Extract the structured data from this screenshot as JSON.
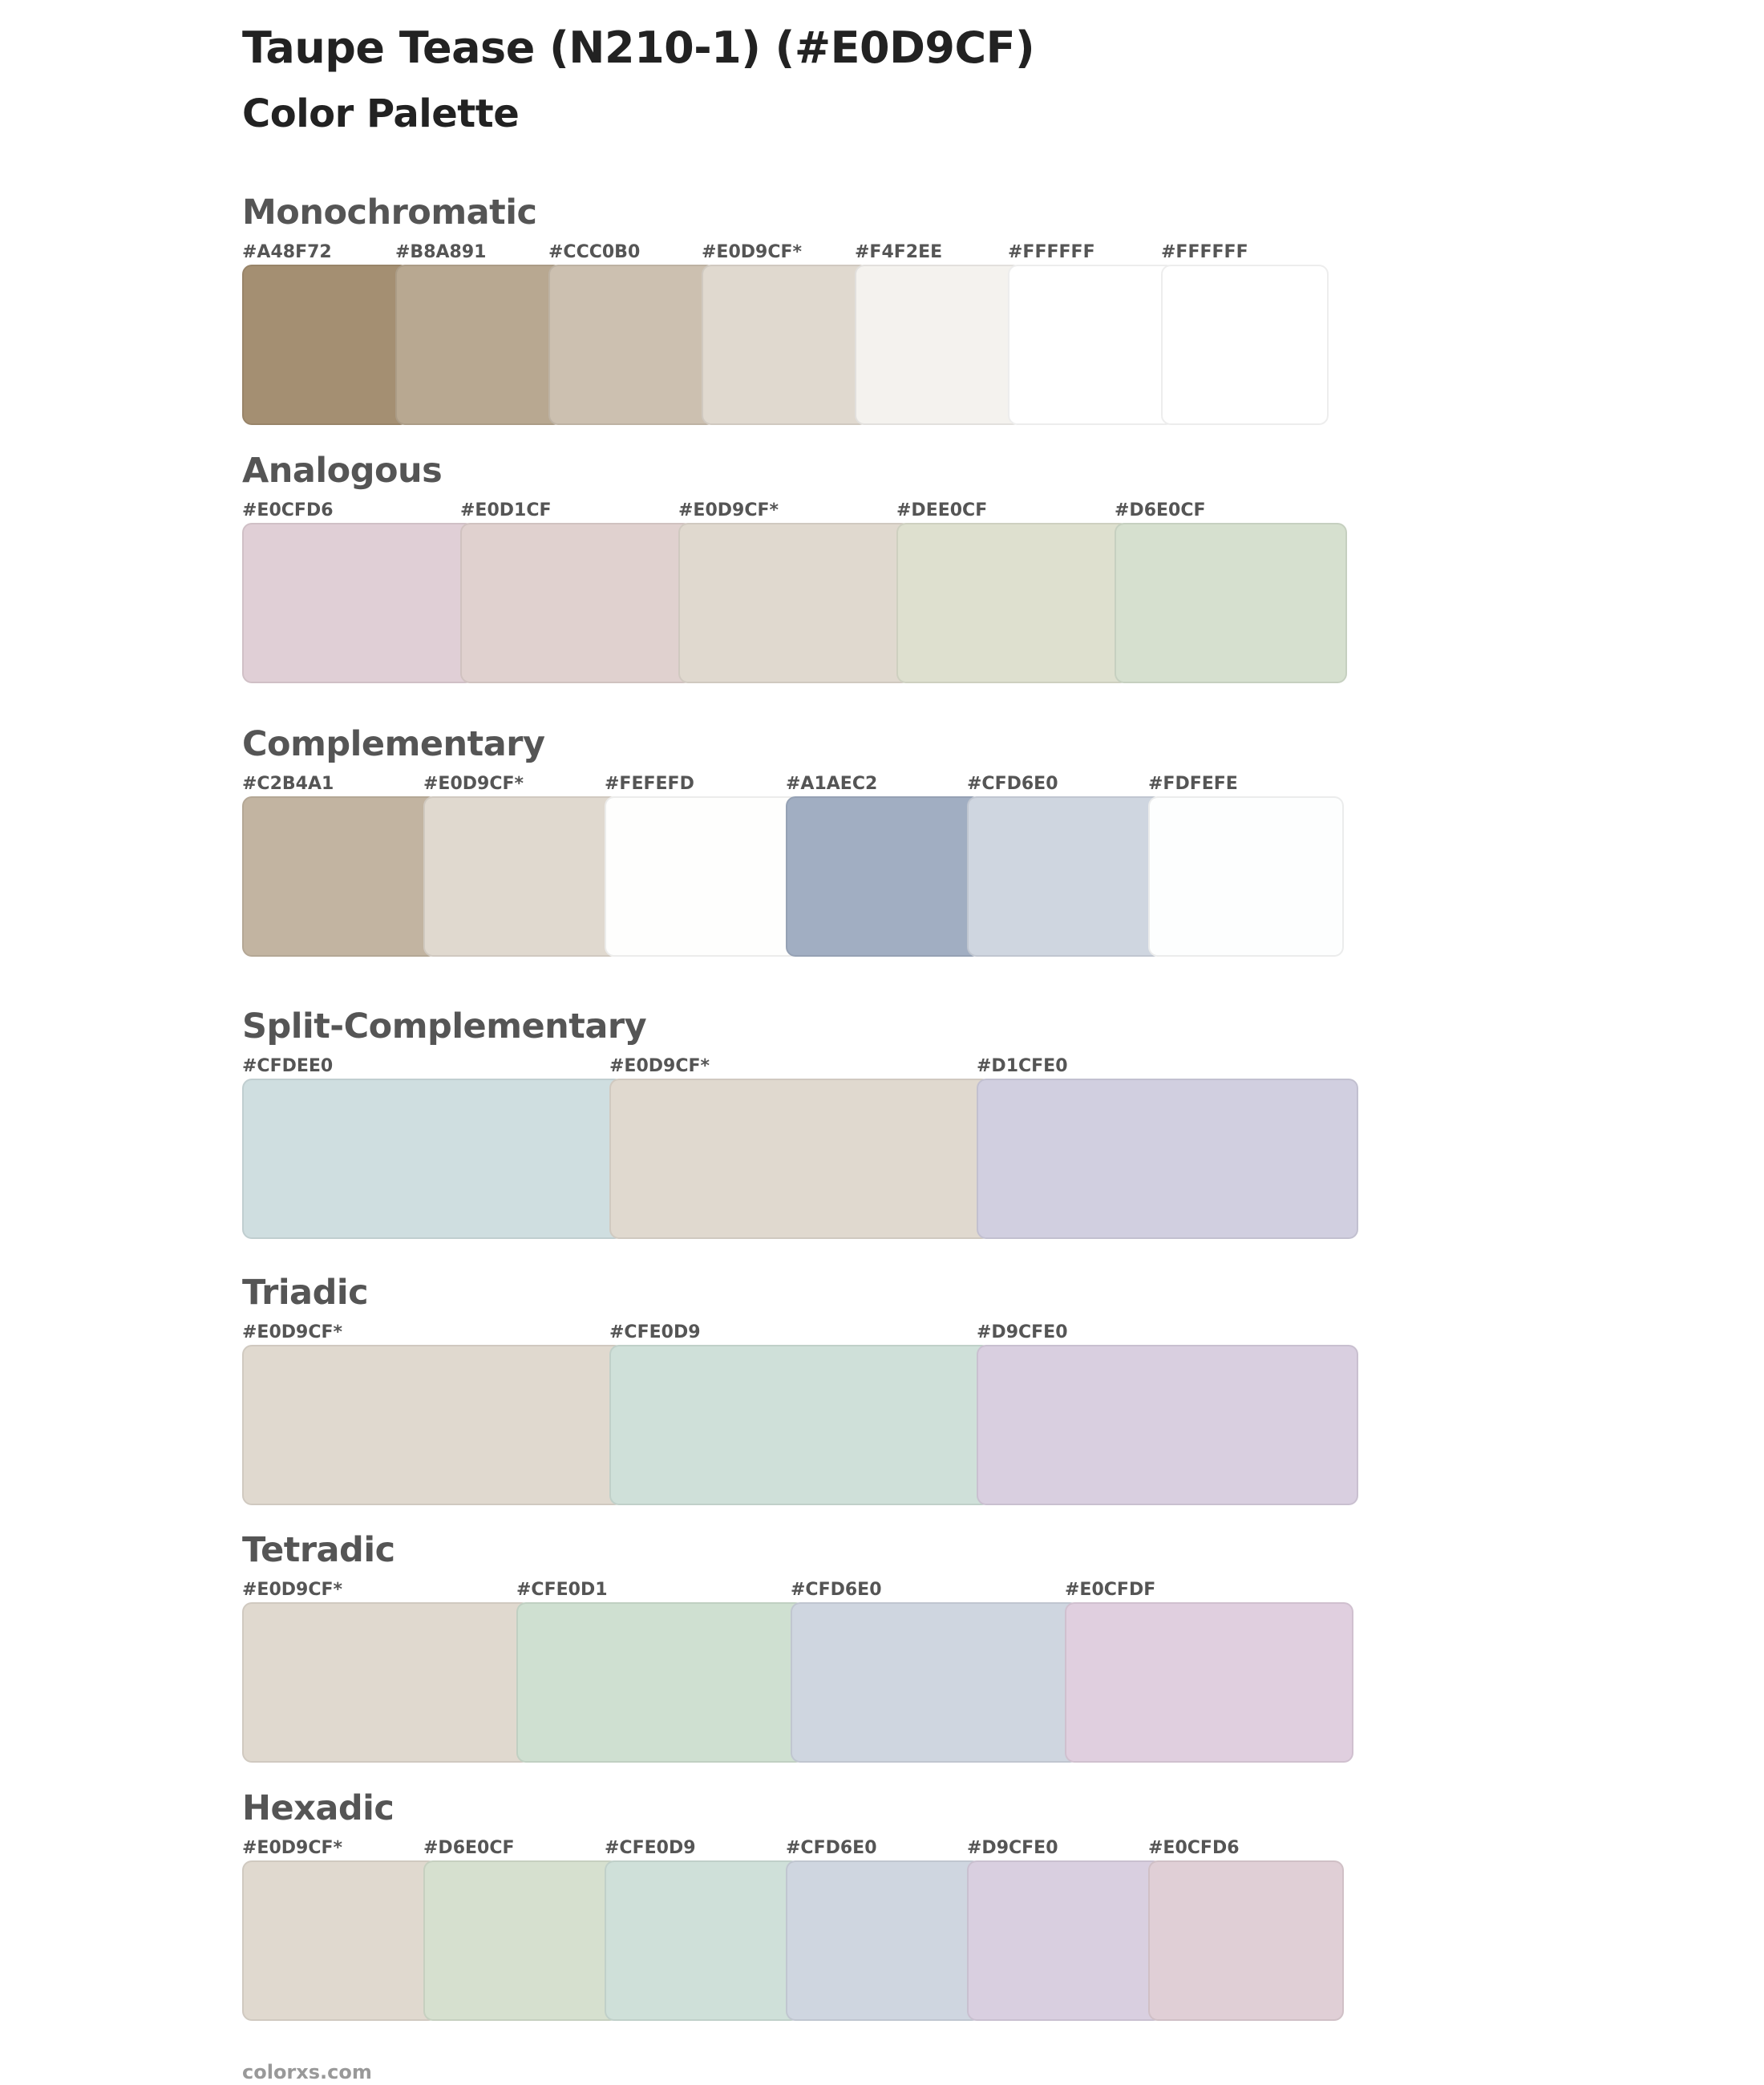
{
  "header": {
    "title": "Taupe Tease (N210-1) (#E0D9CF)",
    "subtitle": "Color Palette"
  },
  "sections": [
    {
      "name": "Monochromatic",
      "swatches": [
        {
          "label": "#A48F72",
          "color": "#A48F72"
        },
        {
          "label": "#B8A891",
          "color": "#B8A891"
        },
        {
          "label": "#CCC0B0",
          "color": "#CCC0B0"
        },
        {
          "label": "#E0D9CF*",
          "color": "#E0D9CF"
        },
        {
          "label": "#F4F2EE",
          "color": "#F4F2EE"
        },
        {
          "label": "#FFFFFF",
          "color": "#FFFFFF"
        },
        {
          "label": "#FFFFFF",
          "color": "#FFFFFF"
        }
      ]
    },
    {
      "name": "Analogous",
      "swatches": [
        {
          "label": "#E0CFD6",
          "color": "#E0CFD6"
        },
        {
          "label": "#E0D1CF",
          "color": "#E0D1CF"
        },
        {
          "label": "#E0D9CF*",
          "color": "#E0D9CF"
        },
        {
          "label": "#DEE0CF",
          "color": "#DEE0CF"
        },
        {
          "label": "#D6E0CF",
          "color": "#D6E0CF"
        }
      ]
    },
    {
      "name": "Complementary",
      "swatches": [
        {
          "label": "#C2B4A1",
          "color": "#C2B4A1"
        },
        {
          "label": "#E0D9CF*",
          "color": "#E0D9CF"
        },
        {
          "label": "#FEFEFD",
          "color": "#FEFEFD"
        },
        {
          "label": "#A1AEC2",
          "color": "#A1AEC2"
        },
        {
          "label": "#CFD6E0",
          "color": "#CFD6E0"
        },
        {
          "label": "#FDFEFE",
          "color": "#FDFEFE"
        }
      ]
    },
    {
      "name": "Split-Complementary",
      "swatches": [
        {
          "label": "#CFDEE0",
          "color": "#CFDEE0"
        },
        {
          "label": "#E0D9CF*",
          "color": "#E0D9CF"
        },
        {
          "label": "#D1CFE0",
          "color": "#D1CFE0"
        }
      ]
    },
    {
      "name": "Triadic",
      "swatches": [
        {
          "label": "#E0D9CF*",
          "color": "#E0D9CF"
        },
        {
          "label": "#CFE0D9",
          "color": "#CFE0D9"
        },
        {
          "label": "#D9CFE0",
          "color": "#D9CFE0"
        }
      ]
    },
    {
      "name": "Tetradic",
      "swatches": [
        {
          "label": "#E0D9CF*",
          "color": "#E0D9CF"
        },
        {
          "label": "#CFE0D1",
          "color": "#CFE0D1"
        },
        {
          "label": "#CFD6E0",
          "color": "#CFD6E0"
        },
        {
          "label": "#E0CFDF",
          "color": "#E0CFDF"
        }
      ]
    },
    {
      "name": "Hexadic",
      "swatches": [
        {
          "label": "#E0D9CF*",
          "color": "#E0D9CF"
        },
        {
          "label": "#D6E0CF",
          "color": "#D6E0CF"
        },
        {
          "label": "#CFE0D9",
          "color": "#CFE0D9"
        },
        {
          "label": "#CFD6E0",
          "color": "#CFD6E0"
        },
        {
          "label": "#D9CFE0",
          "color": "#D9CFE0"
        },
        {
          "label": "#E0CFD6",
          "color": "#E0CFD6"
        }
      ]
    }
  ],
  "footer": {
    "site": "colorxs.com"
  }
}
